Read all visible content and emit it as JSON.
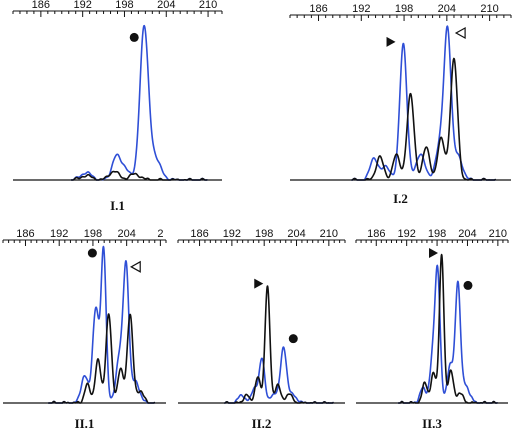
{
  "colors": {
    "blue": "#2f4fd6",
    "black": "#111111"
  },
  "chart_data": [
    {
      "type": "line",
      "label": "I.1",
      "tick_labels": [
        "186",
        "192",
        "198",
        "204",
        "210"
      ],
      "x_range": [
        182,
        212
      ],
      "series": [
        {
          "color": "blue",
          "peaks": [
            {
              "x": 192.5,
              "height": 0.05,
              "width": 0.8
            },
            {
              "x": 196.8,
              "height": 0.16,
              "width": 0.6
            },
            {
              "x": 198.1,
              "height": 0.08,
              "width": 0.6
            },
            {
              "x": 200.8,
              "height": 1.0,
              "width": 0.6
            },
            {
              "x": 202.2,
              "height": 0.16,
              "width": 0.9
            }
          ]
        },
        {
          "color": "black",
          "peaks": [
            {
              "x": 192.5,
              "height": 0.03,
              "width": 0.8
            },
            {
              "x": 196.5,
              "height": 0.06,
              "width": 0.7
            },
            {
              "x": 199.5,
              "height": 0.04,
              "width": 0.8
            }
          ]
        }
      ],
      "markers": [
        {
          "x": 199.4,
          "y": 0.97,
          "shape": "filled-circle"
        }
      ]
    },
    {
      "type": "line",
      "label": "I.2",
      "tick_labels": [
        "186",
        "192",
        "198",
        "204",
        "210"
      ],
      "x_range": [
        182,
        213
      ],
      "series": [
        {
          "color": "blue",
          "peaks": [
            {
              "x": 193.8,
              "height": 0.15,
              "width": 0.55
            },
            {
              "x": 195.5,
              "height": 0.09,
              "width": 0.6
            },
            {
              "x": 197.9,
              "height": 0.93,
              "width": 0.5
            },
            {
              "x": 200.3,
              "height": 0.18,
              "width": 0.6
            },
            {
              "x": 203.0,
              "height": 0.22,
              "width": 0.6
            },
            {
              "x": 204.1,
              "height": 1.0,
              "width": 0.5
            },
            {
              "x": 205.6,
              "height": 0.16,
              "width": 0.6
            }
          ]
        },
        {
          "color": "black",
          "peaks": [
            {
              "x": 194.6,
              "height": 0.16,
              "width": 0.5
            },
            {
              "x": 196.9,
              "height": 0.17,
              "width": 0.5
            },
            {
              "x": 198.9,
              "height": 0.58,
              "width": 0.5
            },
            {
              "x": 201.1,
              "height": 0.22,
              "width": 0.5
            },
            {
              "x": 203.2,
              "height": 0.28,
              "width": 0.5
            },
            {
              "x": 205.0,
              "height": 0.82,
              "width": 0.5
            }
          ]
        }
      ],
      "markers": [
        {
          "x": 196.1,
          "y": 0.94,
          "shape": "filled-triangle-right"
        },
        {
          "x": 206.0,
          "y": 1.0,
          "shape": "open-triangle-left"
        }
      ]
    },
    {
      "type": "line",
      "label": "II.1",
      "tick_labels": [
        "186",
        "192",
        "198",
        "204",
        "2"
      ],
      "x_range": [
        182,
        211
      ],
      "series": [
        {
          "color": "blue",
          "peaks": [
            {
              "x": 196.5,
              "height": 0.18,
              "width": 0.6
            },
            {
              "x": 198.5,
              "height": 0.62,
              "width": 0.55
            },
            {
              "x": 199.9,
              "height": 1.0,
              "width": 0.45
            },
            {
              "x": 202.7,
              "height": 0.3,
              "width": 0.6
            },
            {
              "x": 203.9,
              "height": 0.88,
              "width": 0.5
            },
            {
              "x": 205.6,
              "height": 0.14,
              "width": 0.7
            }
          ]
        },
        {
          "color": "black",
          "peaks": [
            {
              "x": 197.0,
              "height": 0.12,
              "width": 0.5
            },
            {
              "x": 198.9,
              "height": 0.28,
              "width": 0.5
            },
            {
              "x": 200.8,
              "height": 0.58,
              "width": 0.5
            },
            {
              "x": 202.9,
              "height": 0.22,
              "width": 0.5
            },
            {
              "x": 204.6,
              "height": 0.58,
              "width": 0.5
            },
            {
              "x": 206.4,
              "height": 0.08,
              "width": 0.6
            }
          ]
        }
      ],
      "markers": [
        {
          "x": 197.9,
          "y": 0.98,
          "shape": "filled-circle"
        },
        {
          "x": 205.7,
          "y": 0.89,
          "shape": "open-triangle-left"
        }
      ]
    },
    {
      "type": "line",
      "label": "II.2",
      "tick_labels": [
        "186",
        "192",
        "198",
        "204",
        "210"
      ],
      "x_range": [
        182,
        213
      ],
      "series": [
        {
          "color": "blue",
          "peaks": [
            {
              "x": 193.8,
              "height": 0.07,
              "width": 0.6
            },
            {
              "x": 196.2,
              "height": 0.13,
              "width": 0.55
            },
            {
              "x": 197.6,
              "height": 0.38,
              "width": 0.5
            },
            {
              "x": 200.0,
              "height": 0.08,
              "width": 0.7
            },
            {
              "x": 201.6,
              "height": 0.46,
              "width": 0.55
            },
            {
              "x": 203.2,
              "height": 0.07,
              "width": 0.8
            }
          ]
        },
        {
          "color": "black",
          "peaks": [
            {
              "x": 194.7,
              "height": 0.07,
              "width": 0.5
            },
            {
              "x": 196.8,
              "height": 0.22,
              "width": 0.5
            },
            {
              "x": 198.6,
              "height": 1.0,
              "width": 0.45
            },
            {
              "x": 200.5,
              "height": 0.16,
              "width": 0.5
            },
            {
              "x": 202.6,
              "height": 0.08,
              "width": 0.6
            }
          ]
        }
      ],
      "markers": [
        {
          "x": 196.9,
          "y": 1.02,
          "shape": "filled-triangle-right"
        },
        {
          "x": 203.4,
          "y": 0.55,
          "shape": "filled-circle"
        }
      ]
    },
    {
      "type": "line",
      "label": "II.3",
      "tick_labels": [
        "186",
        "192",
        "198",
        "204",
        "210"
      ],
      "x_range": [
        182,
        212
      ],
      "series": [
        {
          "color": "blue",
          "peaks": [
            {
              "x": 195.2,
              "height": 0.1,
              "width": 0.6
            },
            {
              "x": 197.1,
              "height": 0.28,
              "width": 0.55
            },
            {
              "x": 198.1,
              "height": 0.88,
              "width": 0.5
            },
            {
              "x": 200.6,
              "height": 0.26,
              "width": 0.6
            },
            {
              "x": 202.1,
              "height": 0.8,
              "width": 0.5
            },
            {
              "x": 203.6,
              "height": 0.12,
              "width": 0.8
            }
          ]
        },
        {
          "color": "black",
          "peaks": [
            {
              "x": 195.6,
              "height": 0.14,
              "width": 0.5
            },
            {
              "x": 197.3,
              "height": 0.2,
              "width": 0.5
            },
            {
              "x": 198.9,
              "height": 1.0,
              "width": 0.45
            },
            {
              "x": 200.7,
              "height": 0.22,
              "width": 0.5
            },
            {
              "x": 202.5,
              "height": 0.07,
              "width": 0.6
            }
          ]
        }
      ],
      "markers": [
        {
          "x": 197.2,
          "y": 1.02,
          "shape": "filled-triangle-right"
        },
        {
          "x": 204.1,
          "y": 0.8,
          "shape": "filled-circle"
        }
      ]
    }
  ]
}
